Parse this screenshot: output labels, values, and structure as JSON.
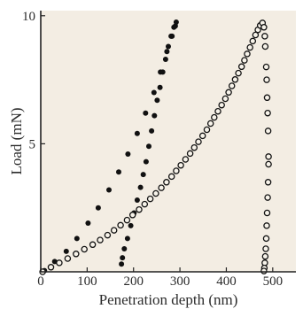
{
  "chart_data": {
    "type": "scatter",
    "title": "",
    "xlabel": "Penetration depth (nm)",
    "ylabel": "Load (mN)",
    "xlim": [
      0,
      550
    ],
    "ylim": [
      0,
      10.2
    ],
    "x_ticks": [
      {
        "value": 0,
        "label": "0"
      },
      {
        "value": 100,
        "label": "100"
      },
      {
        "value": 200,
        "label": "200"
      },
      {
        "value": 300,
        "label": "300"
      },
      {
        "value": 400,
        "label": "400"
      },
      {
        "value": 500,
        "label": "500"
      }
    ],
    "y_ticks": [
      {
        "value": 5,
        "label": "5"
      },
      {
        "value": 10,
        "label": "10"
      }
    ],
    "grid": false,
    "legend": "none",
    "colors": {
      "plot_background": "#f3ede3",
      "filled_marker": "#111111",
      "open_marker_stroke": "#111111",
      "open_marker_fill": "#f7f3ea",
      "axis": "#222222"
    },
    "series": [
      {
        "marker": "filled",
        "points": [
          [
            8,
            0.05
          ],
          [
            30,
            0.4
          ],
          [
            55,
            0.8
          ],
          [
            78,
            1.3
          ],
          [
            102,
            1.9
          ],
          [
            124,
            2.5
          ],
          [
            147,
            3.2
          ],
          [
            168,
            3.9
          ],
          [
            188,
            4.6
          ],
          [
            208,
            5.4
          ],
          [
            226,
            6.2
          ],
          [
            244,
            7.0
          ],
          [
            258,
            7.8
          ],
          [
            272,
            8.6
          ],
          [
            283,
            9.2
          ],
          [
            290,
            9.6
          ],
          [
            292,
            9.75
          ],
          [
            287,
            9.55
          ],
          [
            281,
            9.2
          ],
          [
            275,
            8.8
          ],
          [
            269,
            8.3
          ],
          [
            263,
            7.8
          ],
          [
            257,
            7.2
          ],
          [
            251,
            6.7
          ],
          [
            245,
            6.1
          ],
          [
            239,
            5.5
          ],
          [
            233,
            4.9
          ],
          [
            227,
            4.3
          ],
          [
            221,
            3.8
          ],
          [
            215,
            3.3
          ],
          [
            208,
            2.8
          ],
          [
            201,
            2.3
          ],
          [
            194,
            1.8
          ],
          [
            187,
            1.3
          ],
          [
            180,
            0.9
          ],
          [
            176,
            0.55
          ],
          [
            174,
            0.3
          ]
        ]
      },
      {
        "marker": "open",
        "points": [
          [
            4,
            0.0
          ],
          [
            22,
            0.18
          ],
          [
            40,
            0.35
          ],
          [
            58,
            0.52
          ],
          [
            76,
            0.7
          ],
          [
            94,
            0.88
          ],
          [
            112,
            1.06
          ],
          [
            128,
            1.24
          ],
          [
            144,
            1.43
          ],
          [
            158,
            1.62
          ],
          [
            172,
            1.82
          ],
          [
            186,
            2.02
          ],
          [
            198,
            2.22
          ],
          [
            212,
            2.43
          ],
          [
            224,
            2.64
          ],
          [
            236,
            2.85
          ],
          [
            248,
            3.06
          ],
          [
            260,
            3.28
          ],
          [
            271,
            3.5
          ],
          [
            282,
            3.72
          ],
          [
            292,
            3.94
          ],
          [
            302,
            4.16
          ],
          [
            312,
            4.39
          ],
          [
            322,
            4.62
          ],
          [
            331,
            4.85
          ],
          [
            340,
            5.08
          ],
          [
            349,
            5.31
          ],
          [
            358,
            5.55
          ],
          [
            366,
            5.79
          ],
          [
            374,
            6.03
          ],
          [
            382,
            6.27
          ],
          [
            390,
            6.51
          ],
          [
            398,
            6.76
          ],
          [
            405,
            7.01
          ],
          [
            412,
            7.26
          ],
          [
            419,
            7.51
          ],
          [
            426,
            7.76
          ],
          [
            433,
            8.01
          ],
          [
            439,
            8.26
          ],
          [
            445,
            8.51
          ],
          [
            451,
            8.76
          ],
          [
            457,
            9.01
          ],
          [
            463,
            9.25
          ],
          [
            468,
            9.45
          ],
          [
            473,
            9.62
          ],
          [
            478,
            9.72
          ],
          [
            481,
            9.55
          ],
          [
            483,
            9.2
          ],
          [
            484,
            8.8
          ],
          [
            486,
            8.0
          ],
          [
            487,
            7.5
          ],
          [
            488,
            6.8
          ],
          [
            489,
            6.2
          ],
          [
            490,
            5.5
          ],
          [
            491,
            4.5
          ],
          [
            491,
            4.2
          ],
          [
            490,
            3.5
          ],
          [
            489,
            2.9
          ],
          [
            488,
            2.3
          ],
          [
            487,
            1.8
          ],
          [
            486,
            1.3
          ],
          [
            485,
            0.9
          ],
          [
            484,
            0.6
          ],
          [
            483,
            0.35
          ],
          [
            482,
            0.15
          ],
          [
            481,
            0.03
          ]
        ]
      }
    ]
  }
}
